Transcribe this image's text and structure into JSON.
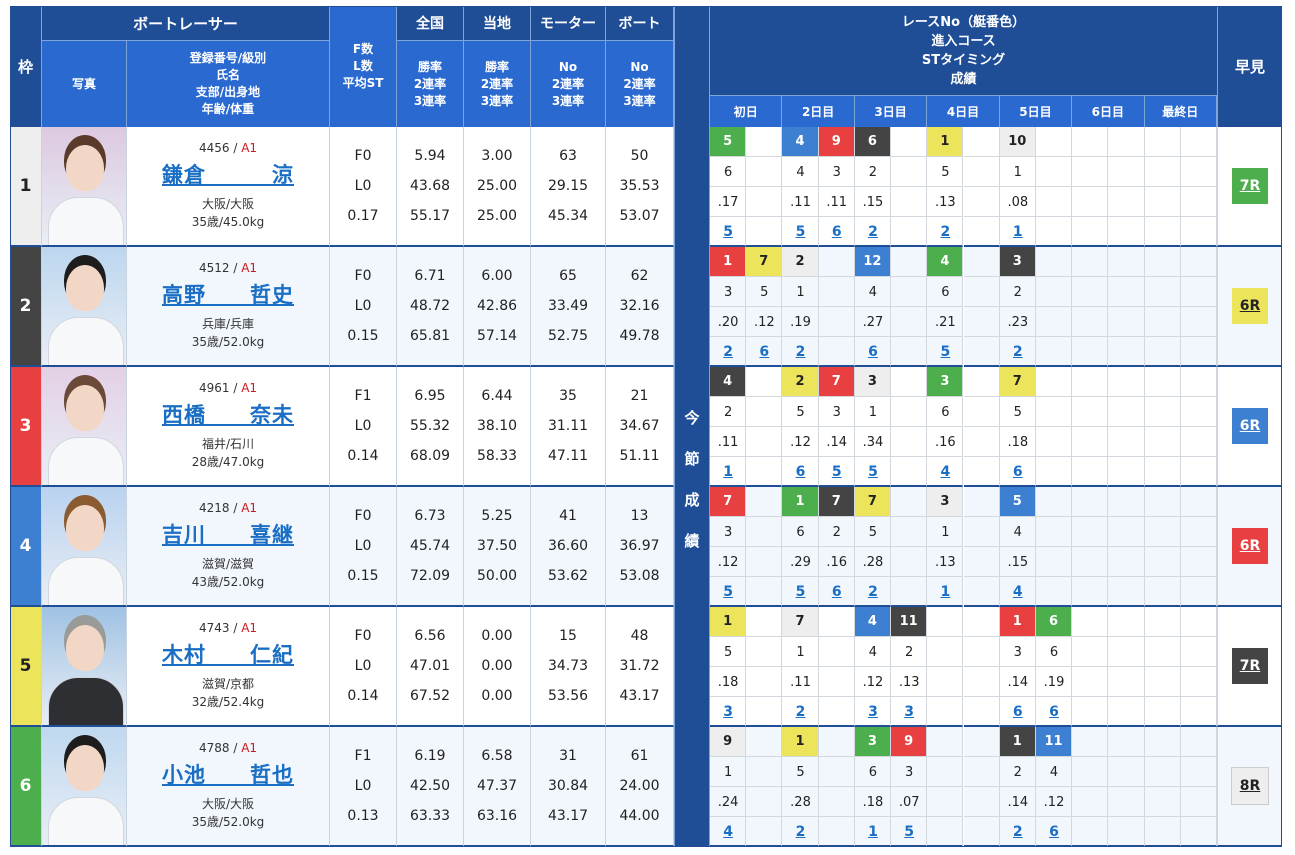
{
  "header": {
    "frame": "枠",
    "boat_racer": "ボートレーサー",
    "photo": "写真",
    "racer_info": [
      "登録番号/級別",
      "氏名",
      "支部/出身地",
      "年齢/体重"
    ],
    "fl": [
      "F数",
      "L数",
      "平均ST"
    ],
    "national": {
      "title": "全国",
      "lines": [
        "勝率",
        "2連率",
        "3連率"
      ]
    },
    "local": {
      "title": "当地",
      "lines": [
        "勝率",
        "2連率",
        "3連率"
      ]
    },
    "motor": {
      "title": "モーター",
      "lines": [
        "No",
        "2連率",
        "3連率"
      ]
    },
    "boat": {
      "title": "ボート",
      "lines": [
        "No",
        "2連率",
        "3連率"
      ]
    },
    "series": [
      "レースNo（艇番色）",
      "進入コース",
      "STタイミング",
      "成績"
    ],
    "days": [
      "初日",
      "2日目",
      "3日目",
      "4日目",
      "5日目",
      "6日目",
      "最終日"
    ],
    "hayami": "早見",
    "series_side_label": "今節成績"
  },
  "colors": {
    "frame": [
      "#eeeeee",
      "#444444",
      "#e84040",
      "#3d7fd0",
      "#ece55c",
      "#4cae4c"
    ],
    "frame_text": [
      "#222222",
      "#ffffff",
      "#ffffff",
      "#ffffff",
      "#222222",
      "#ffffff"
    ],
    "header_dark": "#1f4e96",
    "header_mid": "#2a6ad0",
    "link": "#1a6fc4",
    "class_red": "#cc1a1a",
    "row_alt": "#f2f7fd"
  },
  "racers": [
    {
      "frame": "1",
      "reg": "4456",
      "class": "A1",
      "name": "鎌倉　　　涼",
      "branch": "大阪/大阪",
      "age_weight": "35歳/45.0kg",
      "f": "F0",
      "l": "L0",
      "avg_st": "0.17",
      "national": [
        "5.94",
        "43.68",
        "55.17"
      ],
      "local": [
        "3.00",
        "25.00",
        "25.00"
      ],
      "motor": [
        "63",
        "29.15",
        "45.34"
      ],
      "boat": [
        "50",
        "35.53",
        "53.07"
      ],
      "races": [
        {
          "col": 0,
          "race": "5",
          "boat": 6,
          "course": "6",
          "st": ".17",
          "result": "5"
        },
        {
          "col": 2,
          "race": "4",
          "boat": 4,
          "course": "4",
          "st": ".11",
          "result": "5"
        },
        {
          "col": 3,
          "race": "9",
          "boat": 3,
          "course": "3",
          "st": ".11",
          "result": "6"
        },
        {
          "col": 4,
          "race": "6",
          "boat": 2,
          "course": "2",
          "st": ".15",
          "result": "2"
        },
        {
          "col": 6,
          "race": "1",
          "boat": 5,
          "course": "5",
          "st": ".13",
          "result": "2"
        },
        {
          "col": 8,
          "race": "10",
          "boat": 1,
          "course": "1",
          "st": ".08",
          "result": "1"
        }
      ],
      "hayami": "7R",
      "hayami_boat": 6
    },
    {
      "frame": "2",
      "reg": "4512",
      "class": "A1",
      "name": "高野　　哲史",
      "branch": "兵庫/兵庫",
      "age_weight": "35歳/52.0kg",
      "f": "F0",
      "l": "L0",
      "avg_st": "0.15",
      "national": [
        "6.71",
        "48.72",
        "65.81"
      ],
      "local": [
        "6.00",
        "42.86",
        "57.14"
      ],
      "motor": [
        "65",
        "33.49",
        "52.75"
      ],
      "boat": [
        "62",
        "32.16",
        "49.78"
      ],
      "races": [
        {
          "col": 0,
          "race": "1",
          "boat": 3,
          "course": "3",
          "st": ".20",
          "result": "2"
        },
        {
          "col": 1,
          "race": "7",
          "boat": 5,
          "course": "5",
          "st": ".12",
          "result": "6"
        },
        {
          "col": 2,
          "race": "2",
          "boat": 1,
          "course": "1",
          "st": ".19",
          "result": "2"
        },
        {
          "col": 4,
          "race": "12",
          "boat": 4,
          "course": "4",
          "st": ".27",
          "result": "6"
        },
        {
          "col": 6,
          "race": "4",
          "boat": 6,
          "course": "6",
          "st": ".21",
          "result": "5"
        },
        {
          "col": 8,
          "race": "3",
          "boat": 2,
          "course": "2",
          "st": ".23",
          "result": "2"
        }
      ],
      "hayami": "6R",
      "hayami_boat": 5
    },
    {
      "frame": "3",
      "reg": "4961",
      "class": "A1",
      "name": "西橋　　奈未",
      "branch": "福井/石川",
      "age_weight": "28歳/47.0kg",
      "f": "F1",
      "l": "L0",
      "avg_st": "0.14",
      "national": [
        "6.95",
        "55.32",
        "68.09"
      ],
      "local": [
        "6.44",
        "38.10",
        "58.33"
      ],
      "motor": [
        "35",
        "31.11",
        "47.11"
      ],
      "boat": [
        "21",
        "34.67",
        "51.11"
      ],
      "races": [
        {
          "col": 0,
          "race": "4",
          "boat": 2,
          "course": "2",
          "st": ".11",
          "result": "1"
        },
        {
          "col": 2,
          "race": "2",
          "boat": 5,
          "course": "5",
          "st": ".12",
          "result": "6"
        },
        {
          "col": 3,
          "race": "7",
          "boat": 3,
          "course": "3",
          "st": ".14",
          "result": "5"
        },
        {
          "col": 4,
          "race": "3",
          "boat": 1,
          "course": "1",
          "st": ".34",
          "result": "5"
        },
        {
          "col": 6,
          "race": "3",
          "boat": 6,
          "course": "6",
          "st": ".16",
          "result": "4"
        },
        {
          "col": 8,
          "race": "7",
          "boat": 5,
          "course": "5",
          "st": ".18",
          "result": "6"
        }
      ],
      "hayami": "6R",
      "hayami_boat": 4
    },
    {
      "frame": "4",
      "reg": "4218",
      "class": "A1",
      "name": "吉川　　喜継",
      "branch": "滋賀/滋賀",
      "age_weight": "43歳/52.0kg",
      "f": "F0",
      "l": "L0",
      "avg_st": "0.15",
      "national": [
        "6.73",
        "45.74",
        "72.09"
      ],
      "local": [
        "5.25",
        "37.50",
        "50.00"
      ],
      "motor": [
        "41",
        "36.60",
        "53.62"
      ],
      "boat": [
        "13",
        "36.97",
        "53.08"
      ],
      "races": [
        {
          "col": 0,
          "race": "7",
          "boat": 3,
          "course": "3",
          "st": ".12",
          "result": "5"
        },
        {
          "col": 2,
          "race": "1",
          "boat": 6,
          "course": "6",
          "st": ".29",
          "result": "5"
        },
        {
          "col": 3,
          "race": "7",
          "boat": 2,
          "course": "2",
          "st": ".16",
          "result": "6"
        },
        {
          "col": 4,
          "race": "7",
          "boat": 5,
          "course": "5",
          "st": ".28",
          "result": "2"
        },
        {
          "col": 6,
          "race": "3",
          "boat": 1,
          "course": "1",
          "st": ".13",
          "result": "1"
        },
        {
          "col": 8,
          "race": "5",
          "boat": 4,
          "course": "4",
          "st": ".15",
          "result": "4"
        }
      ],
      "hayami": "6R",
      "hayami_boat": 3
    },
    {
      "frame": "5",
      "reg": "4743",
      "class": "A1",
      "name": "木村　　仁紀",
      "branch": "滋賀/京都",
      "age_weight": "32歳/52.4kg",
      "f": "F0",
      "l": "L0",
      "avg_st": "0.14",
      "national": [
        "6.56",
        "47.01",
        "67.52"
      ],
      "local": [
        "0.00",
        "0.00",
        "0.00"
      ],
      "motor": [
        "15",
        "34.73",
        "53.56"
      ],
      "boat": [
        "48",
        "31.72",
        "43.17"
      ],
      "races": [
        {
          "col": 0,
          "race": "1",
          "boat": 5,
          "course": "5",
          "st": ".18",
          "result": "3"
        },
        {
          "col": 2,
          "race": "7",
          "boat": 1,
          "course": "1",
          "st": ".11",
          "result": "2"
        },
        {
          "col": 4,
          "race": "4",
          "boat": 4,
          "course": "4",
          "st": ".12",
          "result": "3"
        },
        {
          "col": 5,
          "race": "11",
          "boat": 2,
          "course": "2",
          "st": ".13",
          "result": "3"
        },
        {
          "col": 8,
          "race": "1",
          "boat": 3,
          "course": "3",
          "st": ".14",
          "result": "6"
        },
        {
          "col": 9,
          "race": "6",
          "boat": 6,
          "course": "6",
          "st": ".19",
          "result": "6"
        }
      ],
      "hayami": "7R",
      "hayami_boat": 2
    },
    {
      "frame": "6",
      "reg": "4788",
      "class": "A1",
      "name": "小池　　哲也",
      "branch": "大阪/大阪",
      "age_weight": "35歳/52.0kg",
      "f": "F1",
      "l": "L0",
      "avg_st": "0.13",
      "national": [
        "6.19",
        "42.50",
        "63.33"
      ],
      "local": [
        "6.58",
        "47.37",
        "63.16"
      ],
      "motor": [
        "31",
        "30.84",
        "43.17"
      ],
      "boat": [
        "61",
        "24.00",
        "44.00"
      ],
      "races": [
        {
          "col": 0,
          "race": "9",
          "boat": 1,
          "course": "1",
          "st": ".24",
          "result": "4"
        },
        {
          "col": 2,
          "race": "1",
          "boat": 5,
          "course": "5",
          "st": ".28",
          "result": "2"
        },
        {
          "col": 4,
          "race": "3",
          "boat": 6,
          "course": "6",
          "st": ".18",
          "result": "1"
        },
        {
          "col": 5,
          "race": "9",
          "boat": 3,
          "course": "3",
          "st": ".07",
          "result": "5"
        },
        {
          "col": 8,
          "race": "1",
          "boat": 2,
          "course": "2",
          "st": ".14",
          "result": "2"
        },
        {
          "col": 9,
          "race": "11",
          "boat": 4,
          "course": "4",
          "st": ".12",
          "result": "6"
        }
      ],
      "hayami": "8R",
      "hayami_boat": 1
    }
  ]
}
